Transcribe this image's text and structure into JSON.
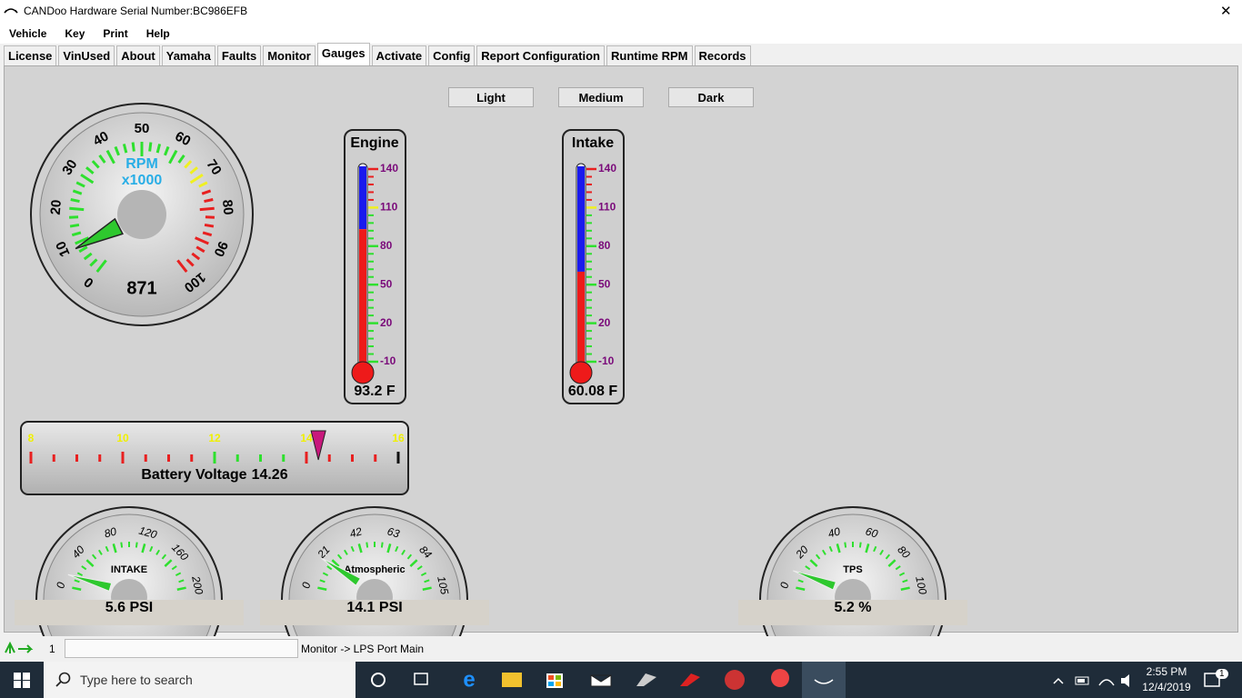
{
  "window": {
    "title": "CANDoo  Hardware Serial Number:BC986EFB",
    "close": "✕"
  },
  "menu": [
    "Vehicle",
    "Key",
    "Print",
    "Help"
  ],
  "tabs": [
    "License",
    "VinUsed",
    "About",
    "Yamaha",
    "Faults",
    "Monitor",
    "Gauges",
    "Activate",
    "Config",
    "Report Configuration",
    "Runtime RPM",
    "Records"
  ],
  "active_tab": 6,
  "theme_buttons": [
    "Light",
    "Medium",
    "Dark"
  ],
  "rpm_gauge": {
    "label": "RPM",
    "unit": "x1000",
    "value": 871,
    "ticks": [
      0,
      {
        "value": 1000,
        "label": "10"
      },
      {
        "value": 2000,
        "label": "20"
      },
      {
        "value": 3000,
        "label": "30"
      },
      {
        "value": 4000,
        "label": "40"
      },
      {
        "value": 5000,
        "label": "50"
      },
      {
        "value": 6000,
        "label": "60"
      },
      {
        "value": 7000,
        "label": "70"
      },
      {
        "value": 8000,
        "label": "80"
      },
      {
        "value": 9000,
        "label": "90"
      },
      {
        "value": 10000,
        "label": "100"
      }
    ],
    "lim": [
      0,
      10000
    ],
    "bands": [
      {
        "from": 0,
        "to": 6400,
        "color": "#2ee02e"
      },
      {
        "from": 6500,
        "to": 7400,
        "color": "#f0f020"
      },
      {
        "from": 7500,
        "to": 10000,
        "color": "#e82020"
      }
    ]
  },
  "thermometers": [
    {
      "title": "Engine",
      "value": 93.2,
      "value_label": "93.2 F",
      "ylim": [
        -10,
        140
      ],
      "yticks": [
        -10,
        20,
        50,
        80,
        110,
        140
      ]
    },
    {
      "title": "Intake",
      "value": 60.08,
      "value_label": "60.08 F",
      "ylim": [
        -10,
        140
      ],
      "yticks": [
        -10,
        20,
        50,
        80,
        110,
        140
      ]
    }
  ],
  "thermo_bands": [
    {
      "from": -10,
      "to": 104,
      "color": "#2ee02e"
    },
    {
      "from": 105,
      "to": 114,
      "color": "#f0f020"
    },
    {
      "from": 115,
      "to": 140,
      "color": "#e82020"
    }
  ],
  "battery": {
    "label": "Battery Voltage",
    "value": 14.26,
    "xlim": [
      8,
      16
    ],
    "xticks": [
      8,
      10,
      12,
      14,
      16
    ],
    "bands": [
      {
        "from": 8,
        "to": 11.9,
        "color": "#e82020"
      },
      {
        "from": 12,
        "to": 13.9,
        "color": "#2ee02e"
      },
      {
        "from": 14,
        "to": 15.9,
        "color": "#e82020"
      },
      {
        "from": 16,
        "to": 16,
        "color": "#111111"
      }
    ]
  },
  "small_gauges": [
    {
      "label": "INTAKE",
      "value": 5.6,
      "value_label": "5.6 PSI",
      "lim": [
        0,
        200
      ],
      "ticks": [
        0,
        40,
        80,
        120,
        160,
        200
      ]
    },
    {
      "label": "Atmospheric",
      "value": 14.1,
      "value_label": "14.1 PSI",
      "lim": [
        0,
        105
      ],
      "ticks": [
        0,
        21,
        42,
        63,
        84,
        105
      ]
    },
    {
      "label": "TPS",
      "value": 5.2,
      "value_label": "5.2 %",
      "lim": [
        0,
        100
      ],
      "ticks": [
        0,
        20,
        40,
        60,
        80,
        100
      ]
    }
  ],
  "status": {
    "count": "1",
    "message": "Monitor -> LPS Port Main"
  },
  "taskbar": {
    "search": "Type here to search",
    "time": "2:55 PM",
    "date": "12/4/2019",
    "notifications": "1"
  }
}
